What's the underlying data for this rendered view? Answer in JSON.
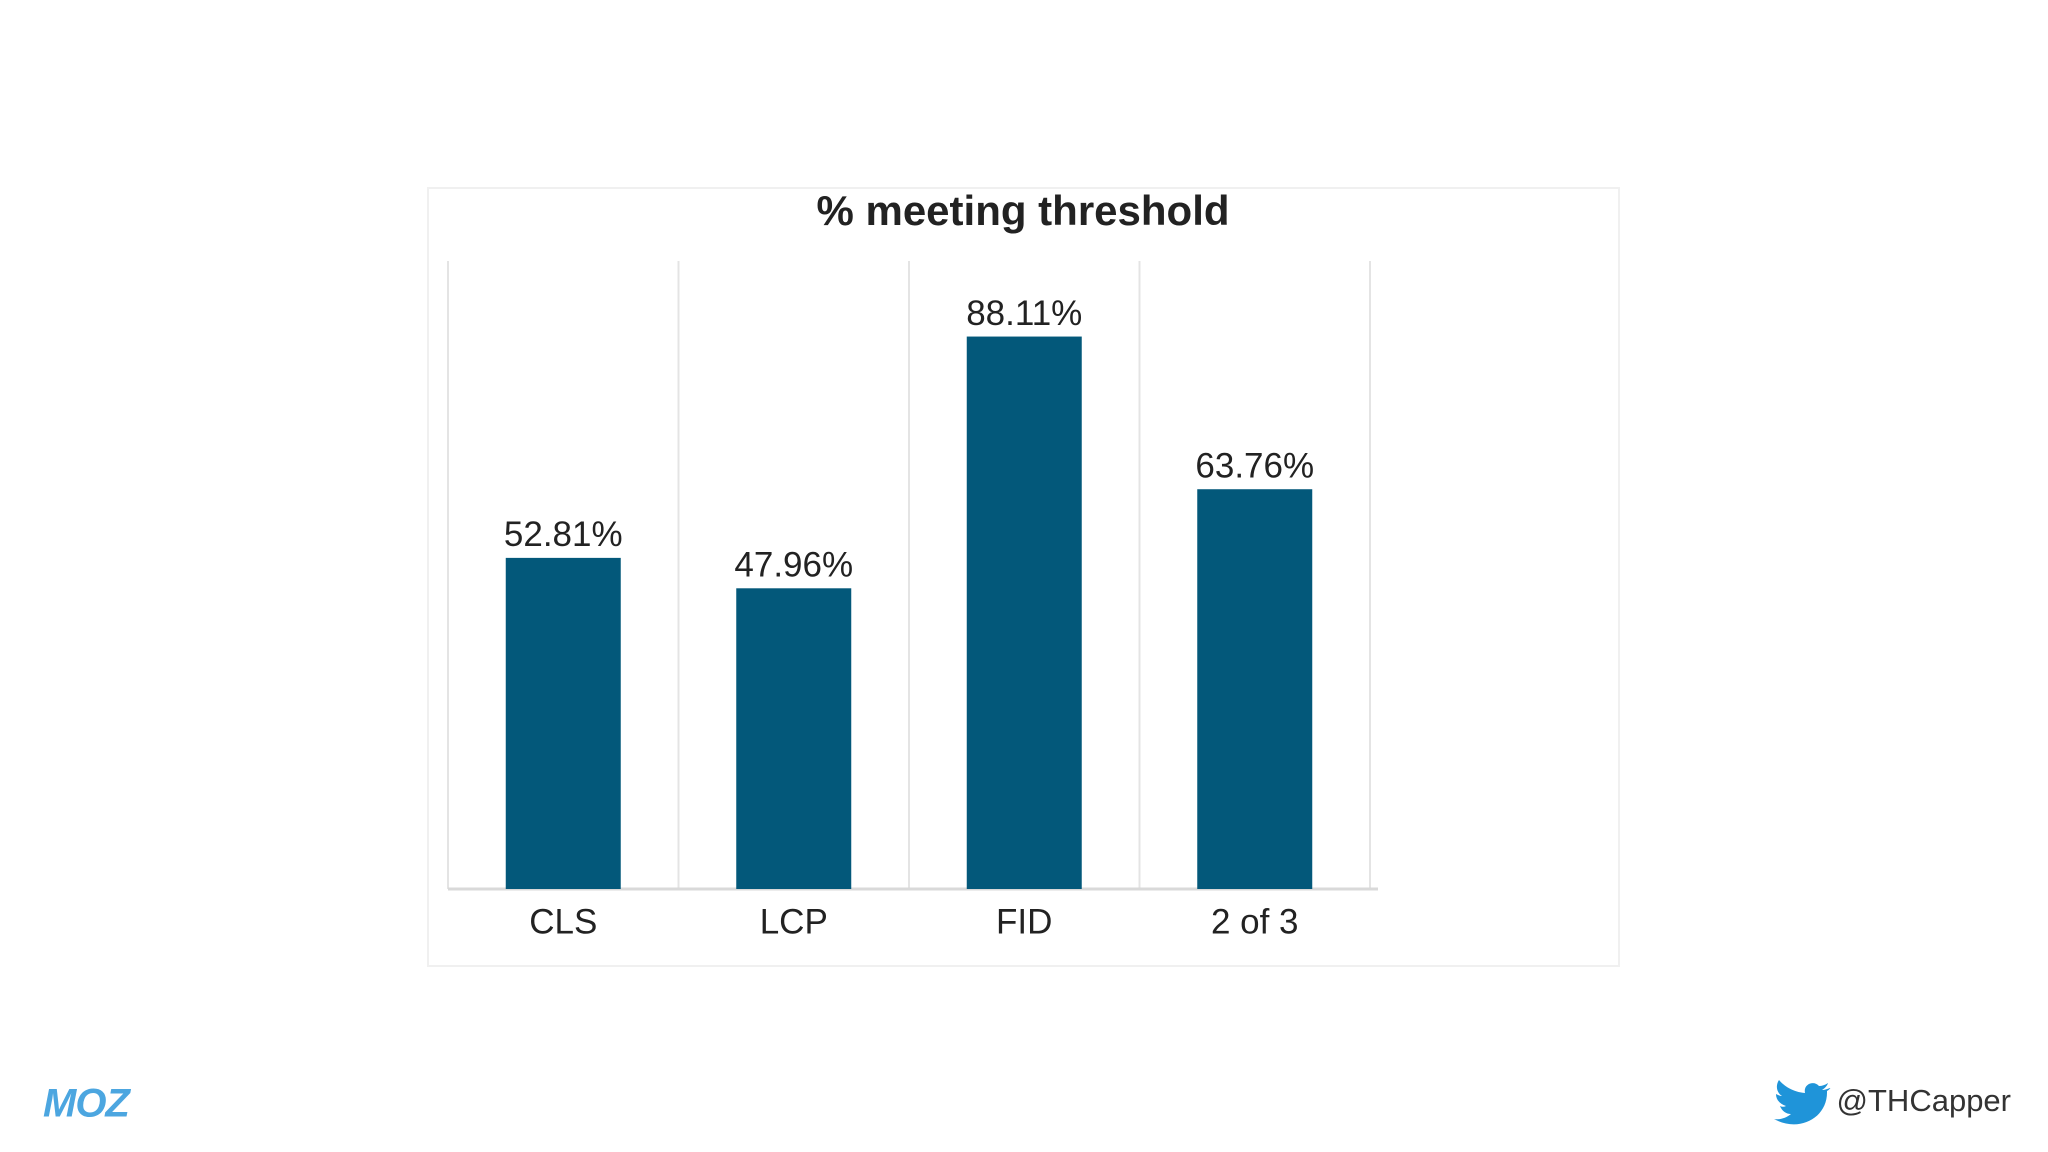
{
  "chart_data": {
    "type": "bar",
    "title": "% meeting threshold",
    "categories": [
      "CLS",
      "LCP",
      "FID",
      "2 of 3"
    ],
    "values": [
      52.81,
      47.96,
      88.11,
      63.76
    ],
    "value_labels": [
      "52.81%",
      "47.96%",
      "88.11%",
      "63.76%"
    ],
    "color": "#03587a"
  },
  "footer": {
    "logo": "MOZ",
    "handle": "@THCapper"
  }
}
